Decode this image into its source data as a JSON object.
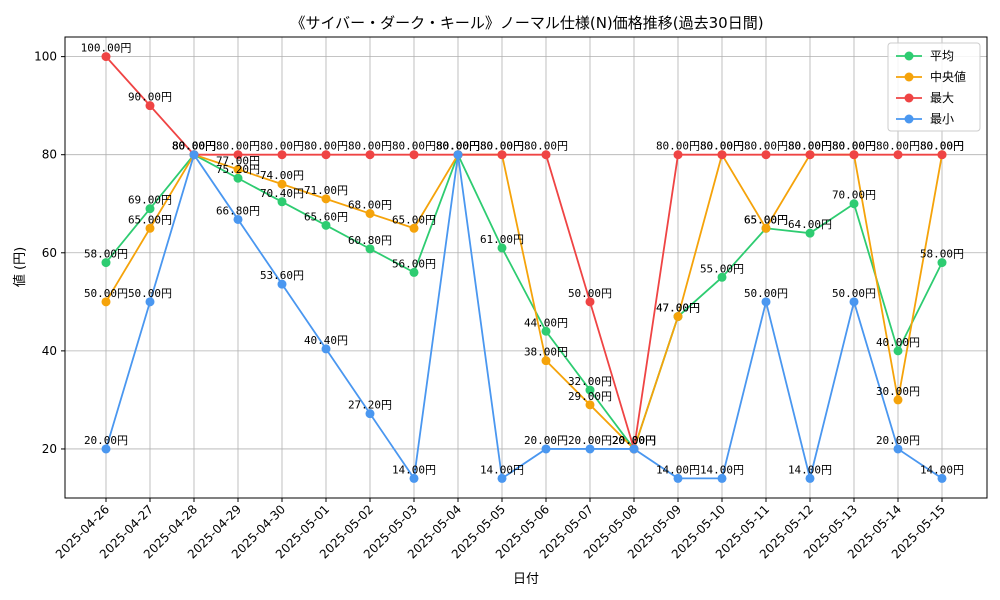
{
  "chart_data": {
    "type": "line",
    "title": "《サイバー・ダーク・キール》ノーマル仕様(N)価格推移(過去30日間)",
    "xlabel": "日付",
    "ylabel": "値 (円)",
    "ylim": [
      10,
      104
    ],
    "yticks": [
      20,
      40,
      60,
      80,
      100
    ],
    "grid": true,
    "legend_position": "top-right",
    "categories": [
      "2025-04-26",
      "2025-04-27",
      "2025-04-28",
      "2025-04-29",
      "2025-04-30",
      "2025-05-01",
      "2025-05-02",
      "2025-05-03",
      "2025-05-04",
      "2025-05-05",
      "2025-05-06",
      "2025-05-07",
      "2025-05-08",
      "2025-05-09",
      "2025-05-10",
      "2025-05-11",
      "2025-05-12",
      "2025-05-13",
      "2025-05-14",
      "2025-05-15"
    ],
    "value_suffix": "円",
    "series": [
      {
        "name": "平均",
        "color": "#2ecc71",
        "values": [
          58,
          69,
          80,
          75.2,
          70.4,
          65.6,
          60.8,
          56,
          80,
          61,
          44,
          32,
          20,
          47,
          55,
          65,
          64,
          70,
          40,
          58
        ]
      },
      {
        "name": "中央値",
        "color": "#f5a30a",
        "values": [
          50,
          65,
          80,
          77,
          74,
          71,
          68,
          65,
          80,
          80,
          38,
          29,
          20,
          47,
          80,
          65,
          80,
          80,
          30,
          80
        ]
      },
      {
        "name": "最大",
        "color": "#ef4444",
        "values": [
          100,
          90,
          80,
          80,
          80,
          80,
          80,
          80,
          80,
          80,
          80,
          50,
          20,
          80,
          80,
          80,
          80,
          80,
          80,
          80
        ]
      },
      {
        "name": "最小",
        "color": "#4a97f0",
        "values": [
          20,
          50,
          80,
          66.8,
          53.6,
          40.4,
          27.2,
          14,
          80,
          14,
          20,
          20,
          20,
          14,
          14,
          50,
          14,
          50,
          20,
          14
        ]
      }
    ]
  }
}
